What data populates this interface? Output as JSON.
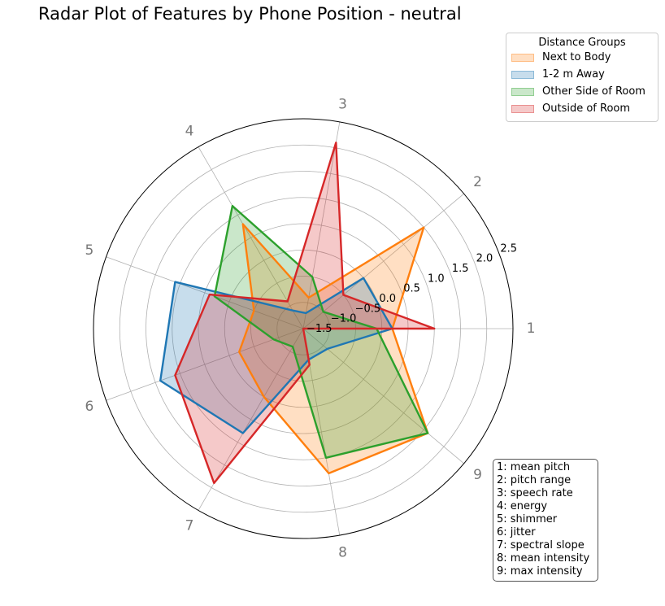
{
  "chart_data": {
    "type": "radar",
    "title": "Radar Plot of Features by Phone Position - neutral",
    "axes": [
      "1",
      "2",
      "3",
      "4",
      "5",
      "6",
      "7",
      "8",
      "9"
    ],
    "radial_ticks": [
      "−1.5",
      "−1.0",
      "−0.5",
      "0.0",
      "0.5",
      "1.0",
      "1.5",
      "2.0",
      "2.5"
    ],
    "rlim": [
      -1.5,
      2.5
    ],
    "grid": true,
    "legend": {
      "title": "Distance Groups",
      "placement": "upper right outside"
    },
    "series": [
      {
        "name": "Next to Body",
        "color": "#ff7f0e",
        "values": [
          0.2,
          1.5,
          -0.9,
          0.8,
          -0.5,
          -0.2,
          0.0,
          1.3,
          1.6
        ]
      },
      {
        "name": "1-2 m Away",
        "color": "#1f77b4",
        "values": [
          0.2,
          0.0,
          -1.2,
          -1.1,
          1.1,
          1.4,
          0.8,
          -0.9,
          -0.9
        ]
      },
      {
        "name": "Other Side of Room",
        "color": "#2ca02c",
        "values": [
          -0.1,
          -1.0,
          -0.5,
          1.2,
          0.3,
          -0.9,
          -1.1,
          1.0,
          1.6
        ]
      },
      {
        "name": "Outside of Room",
        "color": "#d62728",
        "values": [
          1.0,
          -0.5,
          2.1,
          -0.9,
          0.4,
          1.1,
          1.9,
          -0.8,
          -1.5
        ]
      }
    ]
  },
  "feature_key": [
    "1: mean pitch",
    "2: pitch range",
    "3: speech rate",
    "4: energy",
    "5: shimmer",
    "6: jitter",
    "7: spectral slope",
    "8: mean intensity",
    "9: max intensity"
  ]
}
